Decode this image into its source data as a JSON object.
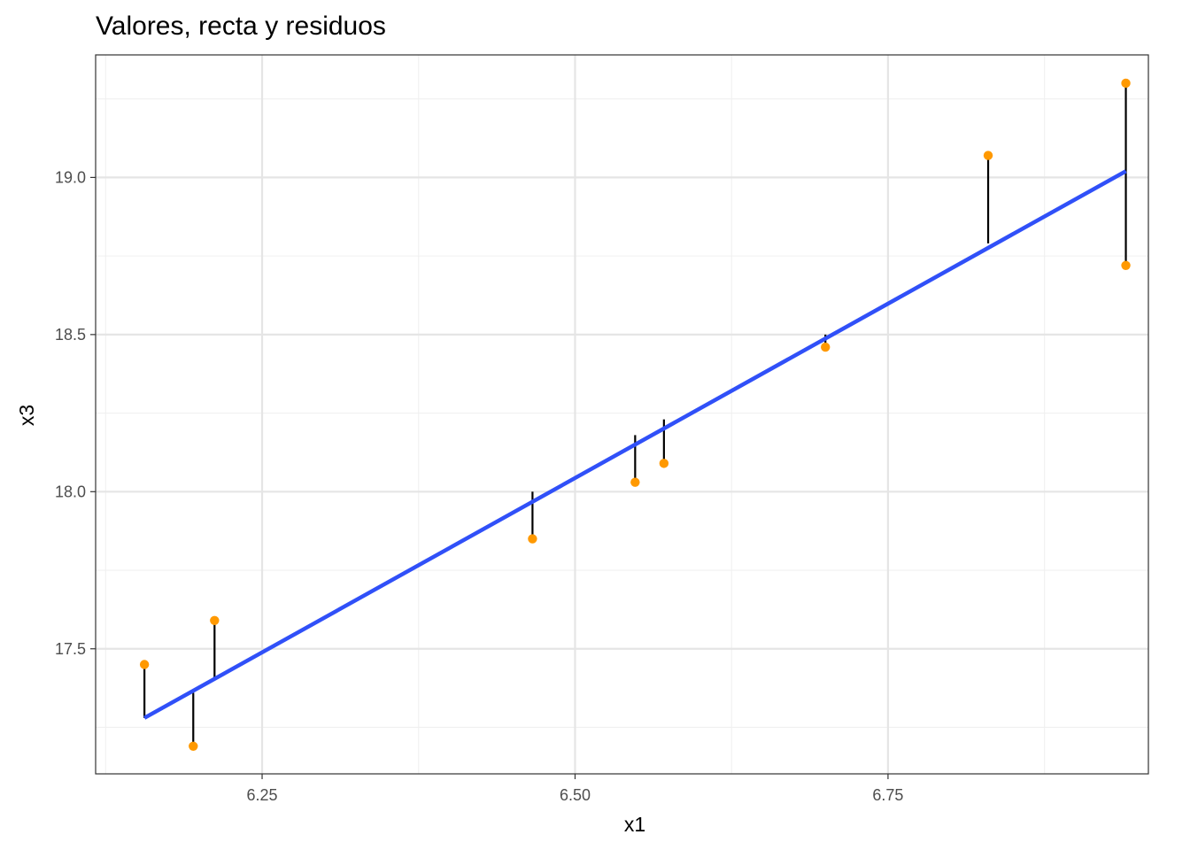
{
  "chart_data": {
    "type": "scatter",
    "title": "Valores, recta y residuos",
    "xlabel": "x1",
    "ylabel": "x3",
    "xlim": [
      6.117,
      6.958
    ],
    "ylim": [
      17.102,
      19.39
    ],
    "x_ticks": [
      6.25,
      6.5,
      6.75
    ],
    "x_tick_labels": [
      "6.25",
      "6.50",
      "6.75"
    ],
    "y_ticks": [
      17.5,
      18.0,
      18.5,
      19.0
    ],
    "y_tick_labels": [
      "17.5",
      "18.0",
      "18.5",
      "19.0"
    ],
    "grid": true,
    "legend": "none",
    "points": [
      {
        "x": 6.156,
        "y": 17.45,
        "fitted": 17.28
      },
      {
        "x": 6.195,
        "y": 17.19,
        "fitted": 17.36
      },
      {
        "x": 6.212,
        "y": 17.59,
        "fitted": 17.4
      },
      {
        "x": 6.466,
        "y": 17.85,
        "fitted": 18.0
      },
      {
        "x": 6.548,
        "y": 18.03,
        "fitted": 18.18
      },
      {
        "x": 6.571,
        "y": 18.09,
        "fitted": 18.23
      },
      {
        "x": 6.7,
        "y": 18.46,
        "fitted": 18.5
      },
      {
        "x": 6.83,
        "y": 19.07,
        "fitted": 18.79
      },
      {
        "x": 6.94,
        "y": 19.3,
        "fitted": 19.02
      },
      {
        "x": 6.94,
        "y": 18.72,
        "fitted": 19.02
      }
    ],
    "regression_line": {
      "x": [
        6.156,
        6.94
      ],
      "y": [
        17.28,
        19.02
      ]
    },
    "colors": {
      "points": "#FF9900",
      "regression_line": "#3050F8",
      "residuals": "#000000",
      "grid_major": "#E5E5E5",
      "grid_minor": "#F0F0F0",
      "panel_border": "#333333"
    }
  }
}
